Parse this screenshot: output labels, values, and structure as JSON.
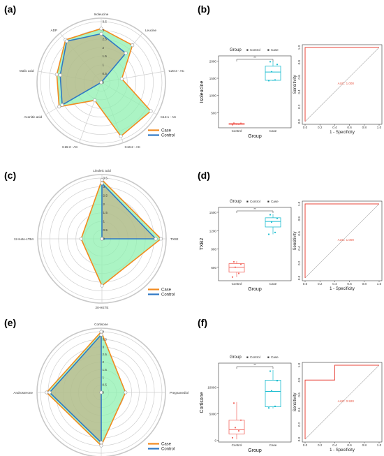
{
  "panel_labels": [
    "(a)",
    "(b)",
    "(c)",
    "(d)",
    "(e)",
    "(f)"
  ],
  "colors": {
    "case": "#f28a1e",
    "control": "#2f78c4",
    "case_fill": "#8ff0b0",
    "control_fill": "#c8a078",
    "box_control": "#f26a62",
    "box_case": "#1bbdd0",
    "roc": "#e8443a"
  },
  "chart_data": [
    {
      "type": "radar",
      "panel": "(a)",
      "axes": [
        "Isoleucine",
        "Leucine",
        "C20:3 - AC",
        "C14:1 - AC",
        "C16:2 - AC",
        "C15:3 - AC",
        "Aconitic acid",
        "Malic acid",
        "ADP"
      ],
      "ticks": [
        "0",
        "0.5",
        "1",
        "1.5",
        "2",
        "2.5",
        "3",
        "3.5"
      ],
      "rmax": 3.5,
      "series": [
        {
          "name": "Case",
          "values": [
            3.1,
            2.8,
            1.2,
            3.3,
            3.3,
            1.1,
            2.8,
            2.6,
            3.2
          ]
        },
        {
          "name": "Control",
          "values": [
            2.8,
            2.2,
            0.0,
            0.0,
            0.0,
            0.0,
            2.6,
            2.4,
            3.1
          ]
        }
      ],
      "legend": [
        "Case",
        "Control"
      ]
    },
    {
      "type": "box",
      "panel": "(b)",
      "legend_title": "Group",
      "legend": [
        "Control",
        "Case"
      ],
      "categories": [
        "Control",
        "Case"
      ],
      "xlabel": "Group",
      "ylabel": "Isoleucine",
      "yticks": [
        500,
        1000,
        1500,
        2000
      ],
      "ylim": [
        60,
        2150
      ],
      "significance": "**",
      "boxes": [
        {
          "group": "Control",
          "min": 140,
          "q1": 160,
          "median": 172,
          "q3": 185,
          "max": 200,
          "points": [
            150,
            165,
            175,
            190,
            195
          ]
        },
        {
          "group": "Case",
          "min": 1420,
          "q1": 1440,
          "median": 1680,
          "q3": 1850,
          "max": 2000,
          "points": [
            1430,
            1450,
            1690,
            1900,
            1980
          ]
        }
      ]
    },
    {
      "type": "roc",
      "panel": "(b)",
      "xlabel": "1 - Specificity",
      "ylabel": "Sensitivity",
      "ticks": [
        "0.0",
        "0.2",
        "0.4",
        "0.6",
        "0.8",
        "1.0"
      ],
      "auc_label": "AUC: 1.000",
      "points": [
        [
          0,
          0
        ],
        [
          0,
          1
        ],
        [
          1,
          1
        ]
      ]
    },
    {
      "type": "radar",
      "panel": "(c)",
      "axes": [
        "Linoleic acid",
        "TXB2",
        "20-HETE",
        "12-Keto-LTB4"
      ],
      "ticks": [
        "0",
        "0.5",
        "1",
        "1.5",
        "2",
        "2.5",
        "3",
        "3.5"
      ],
      "rmax": 3.5,
      "series": [
        {
          "name": "Case",
          "values": [
            3.4,
            3.4,
            2.7,
            1.2
          ]
        },
        {
          "name": "Control",
          "values": [
            3.2,
            3.1,
            0.0,
            0.0
          ]
        }
      ],
      "legend": [
        "Case",
        "Control"
      ]
    },
    {
      "type": "box",
      "panel": "(d)",
      "legend_title": "Group",
      "legend": [
        "Control",
        "Case"
      ],
      "categories": [
        "Control",
        "Case"
      ],
      "xlabel": "Group",
      "ylabel": "TXB2",
      "yticks": [
        600,
        900,
        1200,
        1500
      ],
      "ylim": [
        380,
        1580
      ],
      "significance": "**",
      "boxes": [
        {
          "group": "Control",
          "min": 440,
          "q1": 520,
          "median": 600,
          "q3": 660,
          "max": 700,
          "points": [
            440,
            500,
            600,
            650,
            690
          ]
        },
        {
          "group": "Case",
          "min": 1140,
          "q1": 1260,
          "median": 1350,
          "q3": 1410,
          "max": 1470,
          "points": [
            1140,
            1170,
            1340,
            1400,
            1460
          ]
        }
      ]
    },
    {
      "type": "roc",
      "panel": "(d)",
      "xlabel": "1 - Specificity",
      "ylabel": "Sensitivity",
      "ticks": [
        "0.0",
        "0.2",
        "0.4",
        "0.6",
        "0.8",
        "1.0"
      ],
      "auc_label": "AUC: 1.000",
      "points": [
        [
          0,
          0
        ],
        [
          0,
          1
        ],
        [
          1,
          1
        ]
      ]
    },
    {
      "type": "radar",
      "panel": "(e)",
      "axes": [
        "Cortisone",
        "Pregnanediol",
        "Testosterone",
        "Androsterone"
      ],
      "ticks": [
        "0",
        "0.5",
        "1",
        "1.5",
        "2",
        "2.5",
        "3",
        "3.5",
        "4"
      ],
      "rmax": 4,
      "series": [
        {
          "name": "Case",
          "values": [
            4.0,
            1.6,
            3.5,
            3.6
          ]
        },
        {
          "name": "Control",
          "values": [
            3.8,
            0.0,
            3.3,
            3.4
          ]
        }
      ],
      "legend": [
        "Case",
        "Control"
      ]
    },
    {
      "type": "box",
      "panel": "(f)",
      "legend_title": "Group",
      "legend": [
        "Control",
        "Case"
      ],
      "categories": [
        "Control",
        "Case"
      ],
      "xlabel": "Group",
      "ylabel": "Cortisone",
      "yticks": [
        0,
        5000,
        10000
      ],
      "ylim": [
        -300,
        14500
      ],
      "significance": "**",
      "boxes": [
        {
          "group": "Control",
          "min": 200,
          "q1": 1200,
          "median": 2000,
          "q3": 3800,
          "max": 7200,
          "points": [
            500,
            1800,
            2400,
            3800,
            7000
          ]
        },
        {
          "group": "Case",
          "min": 6000,
          "q1": 6300,
          "median": 9200,
          "q3": 11300,
          "max": 13200,
          "points": [
            6100,
            6400,
            9300,
            11200,
            13000
          ]
        }
      ]
    },
    {
      "type": "roc",
      "panel": "(f)",
      "xlabel": "1 - Specificity",
      "ylabel": "Sensitivity",
      "ticks": [
        "0.0",
        "0.2",
        "0.4",
        "0.6",
        "0.8",
        "1.0"
      ],
      "auc_label": "AUC: 0.920",
      "points": [
        [
          0,
          0
        ],
        [
          0,
          0.8
        ],
        [
          0.4,
          0.8
        ],
        [
          0.4,
          1.0
        ],
        [
          1,
          1
        ]
      ]
    }
  ]
}
